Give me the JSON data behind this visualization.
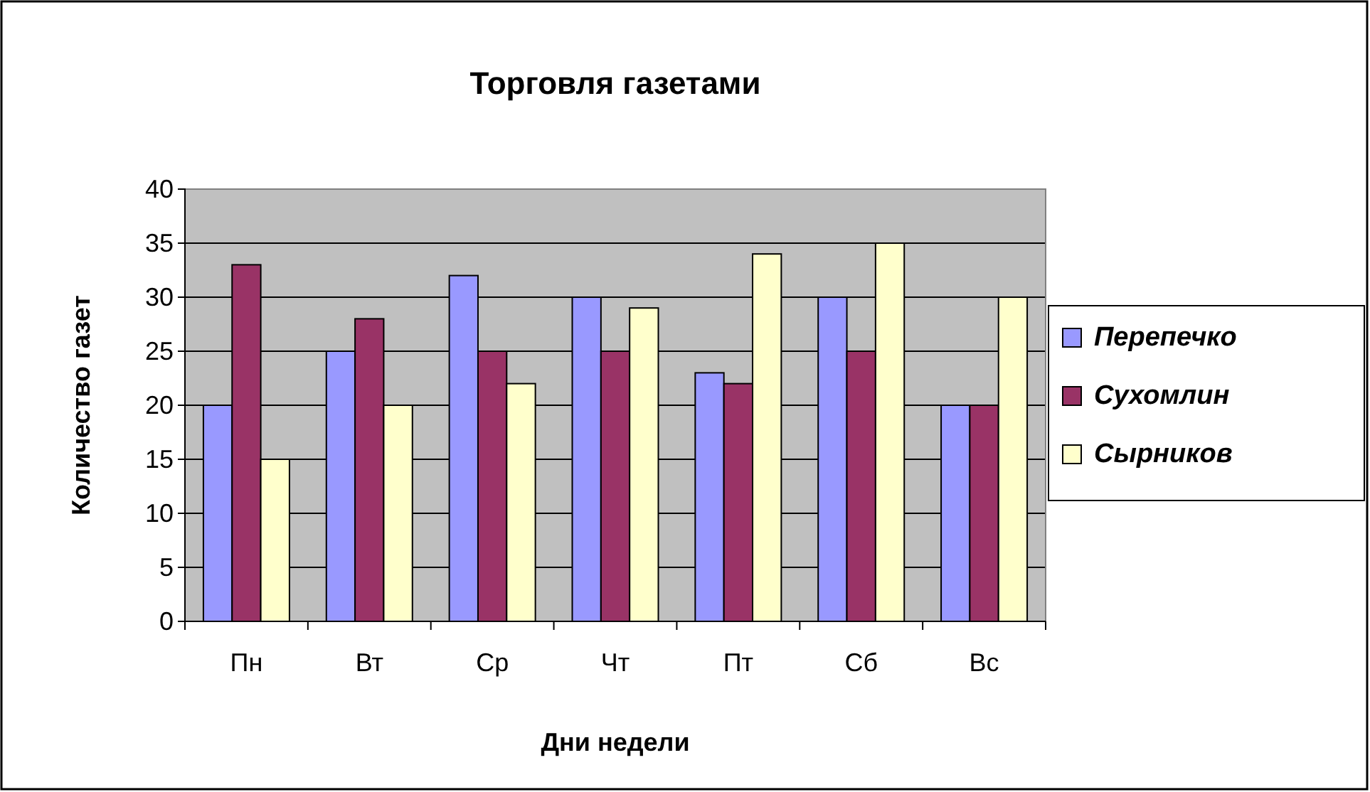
{
  "chart_data": {
    "type": "bar",
    "title": "Торговля газетами",
    "xlabel": "Дни недели",
    "ylabel": "Количество газет",
    "categories": [
      "Пн",
      "Вт",
      "Ср",
      "Чт",
      "Пт",
      "Сб",
      "Вс"
    ],
    "series": [
      {
        "name": "Перепечко",
        "color": "#9999ff",
        "values": [
          20,
          25,
          32,
          30,
          23,
          30,
          20
        ]
      },
      {
        "name": "Сухомлин",
        "color": "#993366",
        "values": [
          33,
          28,
          25,
          25,
          22,
          25,
          20
        ]
      },
      {
        "name": "Сырников",
        "color": "#ffffcc",
        "values": [
          15,
          20,
          22,
          29,
          34,
          35,
          30
        ]
      }
    ],
    "ylim": [
      0,
      40
    ],
    "yticks": [
      0,
      5,
      10,
      15,
      20,
      25,
      30,
      35,
      40
    ],
    "grid": "y",
    "legend": "right"
  }
}
